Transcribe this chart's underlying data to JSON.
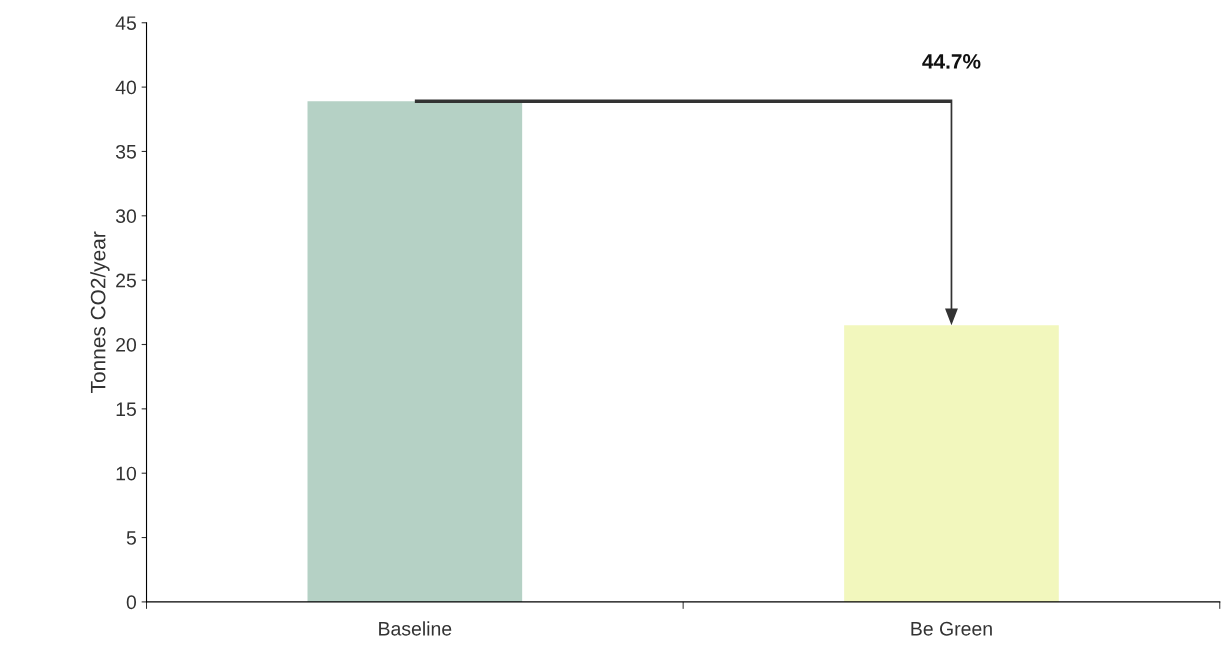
{
  "chart_data": {
    "type": "bar",
    "ylabel": "Tonnes CO2/year",
    "categories": [
      "Baseline",
      "Be Green"
    ],
    "values": [
      38.9,
      21.5
    ],
    "colors": [
      "#b5d1c5",
      "#f2f7bd"
    ],
    "ylim": [
      0,
      45
    ],
    "yticks": [
      0,
      5,
      10,
      15,
      20,
      25,
      30,
      35,
      40,
      45
    ],
    "annotations": [
      "44.7%"
    ],
    "grid": false,
    "legend": false
  }
}
